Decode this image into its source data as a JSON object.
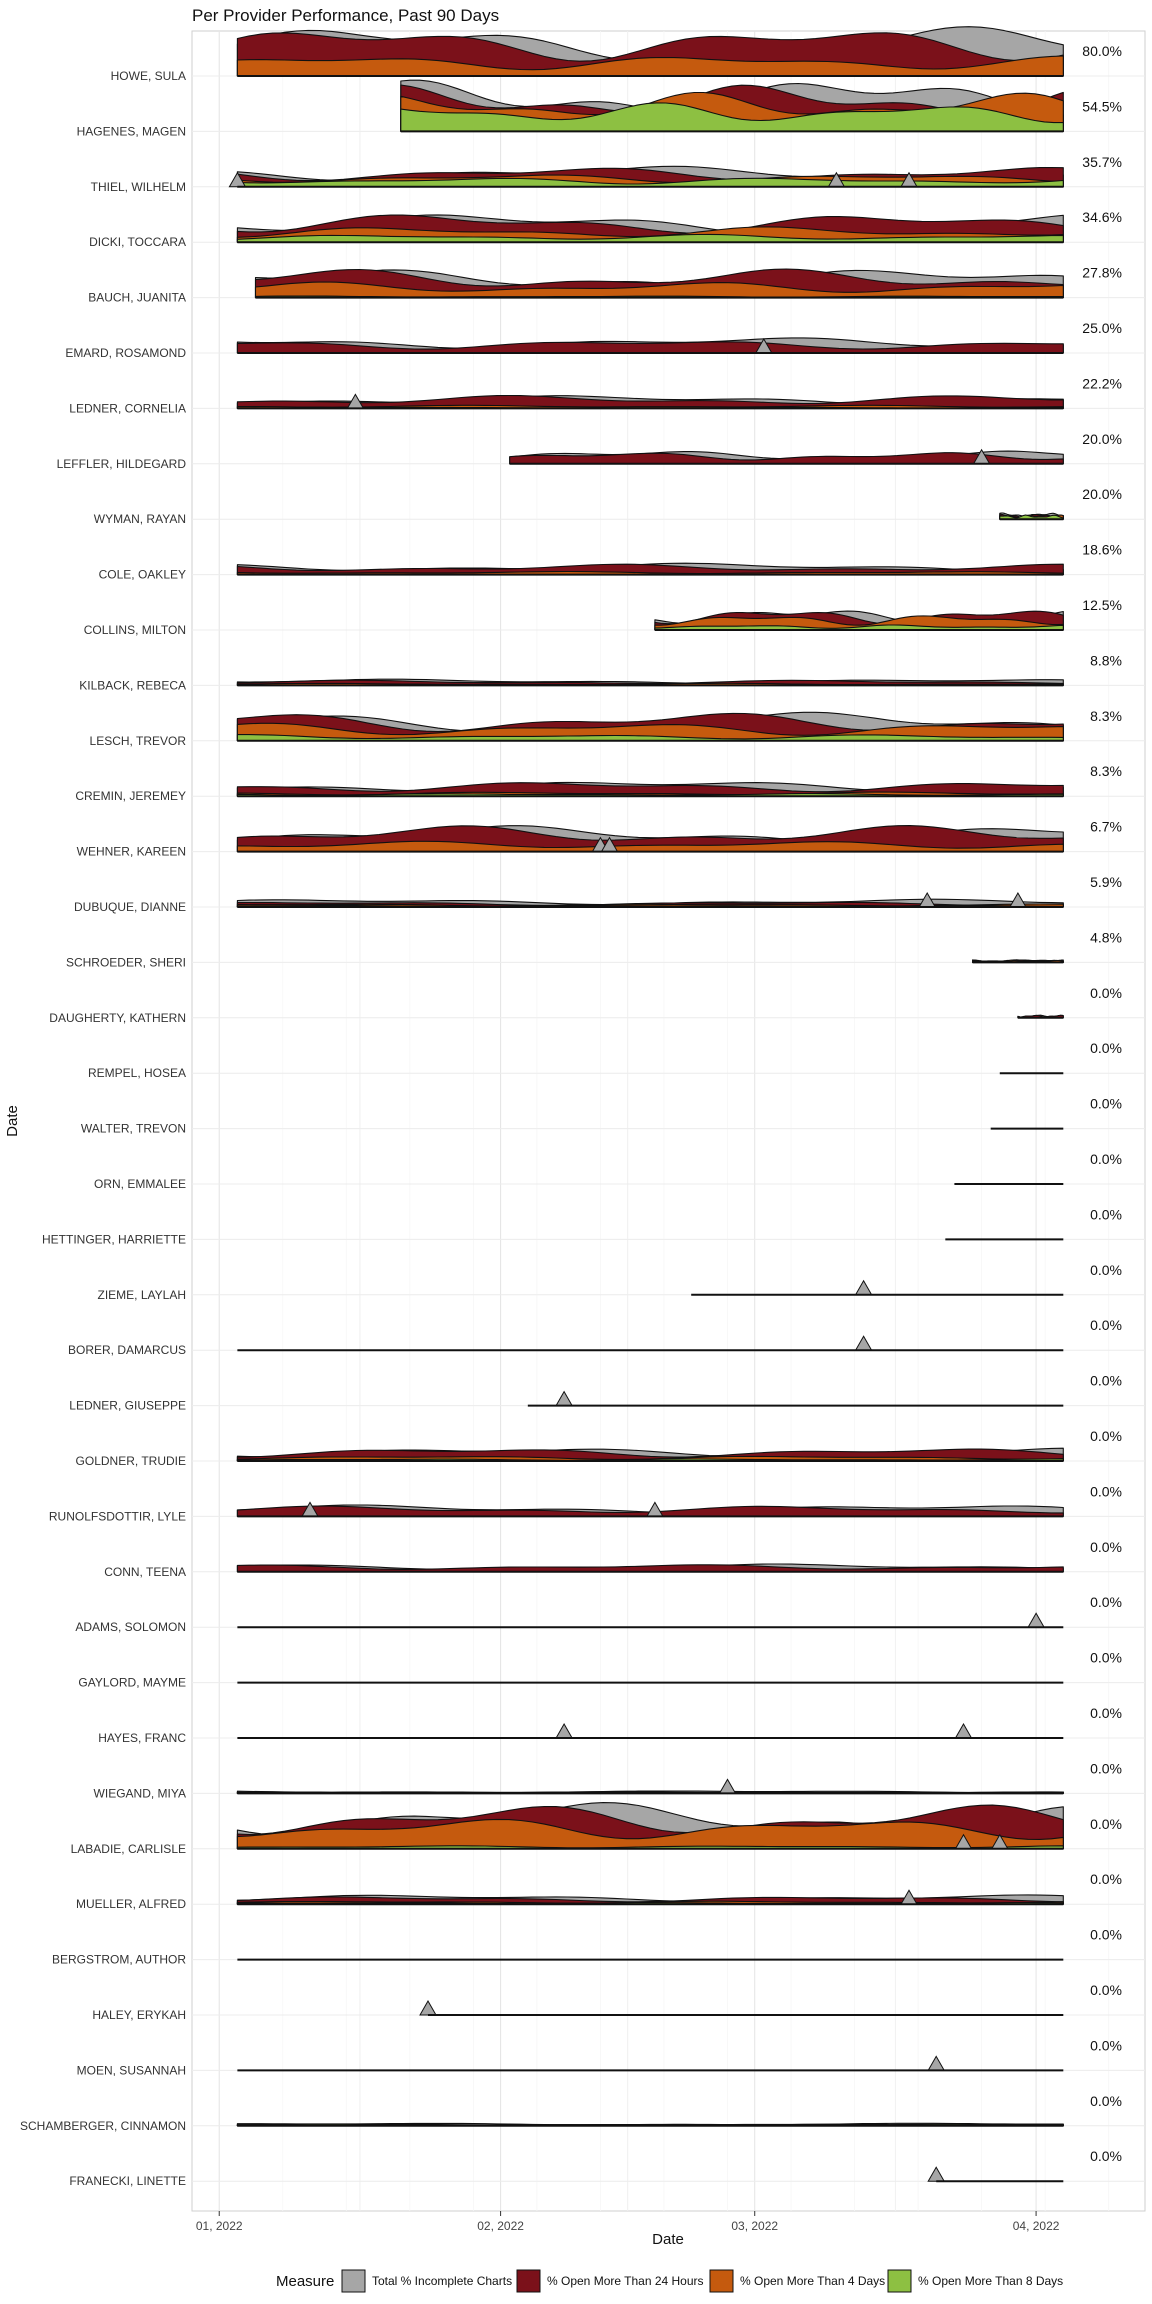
{
  "chart_data": {
    "type": "area",
    "title": "Per Provider Performance, Past 90 Days",
    "xlabel": "Date",
    "ylabel": "Date",
    "x_ticks": [
      {
        "date": "2022-01-01",
        "label": "01, 2022"
      },
      {
        "date": "2022-02-01",
        "label": "02, 2022"
      },
      {
        "date": "2022-03-01",
        "label": "03, 2022"
      },
      {
        "date": "2022-04-01",
        "label": "04, 2022"
      }
    ],
    "xlim": [
      "2021-12-29",
      "2022-04-13"
    ],
    "data_range": [
      "2022-01-03",
      "2022-04-04"
    ],
    "grid": true,
    "legend": {
      "title": "Measure",
      "position": "bottom",
      "entries": [
        {
          "key": "incomplete",
          "label": "Total % Incomplete Charts",
          "color": "#A6A6A6"
        },
        {
          "key": "h24",
          "label": "% Open More Than 24 Hours",
          "color": "#7B111A"
        },
        {
          "key": "d4",
          "label": "% Open More Than 4 Days",
          "color": "#C55A0E"
        },
        {
          "key": "d8",
          "label": "% Open More Than 8 Days",
          "color": "#8DC042"
        }
      ]
    },
    "providers": [
      {
        "name": "HOWE, SULA",
        "pct": "80.0%",
        "start": "2022-01-03",
        "levels": {
          "incomplete": 0.95,
          "h24": 0.95,
          "d4": 0.4,
          "d8": 0.0
        },
        "spikes": []
      },
      {
        "name": "HAGENES, MAGEN",
        "pct": "54.5%",
        "start": "2022-01-21",
        "levels": {
          "incomplete": 1.0,
          "h24": 0.9,
          "d4": 0.75,
          "d8": 0.55
        },
        "spikes": []
      },
      {
        "name": "THIEL, WILHELM",
        "pct": "35.7%",
        "start": "2022-01-03",
        "levels": {
          "incomplete": 0.4,
          "h24": 0.38,
          "d4": 0.25,
          "d8": 0.18
        },
        "spikes": [
          "2022-01-03",
          "2022-03-10",
          "2022-03-18"
        ]
      },
      {
        "name": "DICKI, TOCCARA",
        "pct": "34.6%",
        "start": "2022-01-03",
        "levels": {
          "incomplete": 0.55,
          "h24": 0.55,
          "d4": 0.3,
          "d8": 0.15
        },
        "spikes": []
      },
      {
        "name": "BAUCH, JUANITA",
        "pct": "27.8%",
        "start": "2022-01-05",
        "levels": {
          "incomplete": 0.55,
          "h24": 0.55,
          "d4": 0.3,
          "d8": 0.03
        },
        "spikes": []
      },
      {
        "name": "EMARD, ROSAMOND",
        "pct": "25.0%",
        "start": "2022-01-03",
        "levels": {
          "incomplete": 0.3,
          "h24": 0.25,
          "d4": 0.0,
          "d8": 0.0
        },
        "spikes": [
          "2022-03-02"
        ]
      },
      {
        "name": "LEDNER, CORNELIA",
        "pct": "22.2%",
        "start": "2022-01-03",
        "levels": {
          "incomplete": 0.25,
          "h24": 0.25,
          "d4": 0.06,
          "d8": 0.02
        },
        "spikes": [
          "2022-01-16"
        ]
      },
      {
        "name": "LEFFLER, HILDEGARD",
        "pct": "20.0%",
        "start": "2022-02-02",
        "levels": {
          "incomplete": 0.25,
          "h24": 0.22,
          "d4": 0.0,
          "d8": 0.0
        },
        "spikes": [
          "2022-03-26"
        ]
      },
      {
        "name": "WYMAN, RAYAN",
        "pct": "20.0%",
        "start": "2022-03-28",
        "levels": {
          "incomplete": 0.12,
          "h24": 0.1,
          "d4": 0.08,
          "d8": 0.08
        },
        "spikes": []
      },
      {
        "name": "COLE, OAKLEY",
        "pct": "18.6%",
        "start": "2022-01-03",
        "levels": {
          "incomplete": 0.22,
          "h24": 0.2,
          "d4": 0.06,
          "d8": 0.0
        },
        "spikes": []
      },
      {
        "name": "COLLINS, MILTON",
        "pct": "12.5%",
        "start": "2022-02-18",
        "levels": {
          "incomplete": 0.4,
          "h24": 0.4,
          "d4": 0.3,
          "d8": 0.1
        },
        "spikes": []
      },
      {
        "name": "KILBACK, REBECA",
        "pct": "8.8%",
        "start": "2022-01-03",
        "levels": {
          "incomplete": 0.12,
          "h24": 0.1,
          "d4": 0.04,
          "d8": 0.0
        },
        "spikes": []
      },
      {
        "name": "LESCH, TREVOR",
        "pct": "8.3%",
        "start": "2022-01-03",
        "levels": {
          "incomplete": 0.55,
          "h24": 0.55,
          "d4": 0.35,
          "d8": 0.12
        },
        "spikes": []
      },
      {
        "name": "CREMIN, JEREMEY",
        "pct": "8.3%",
        "start": "2022-01-03",
        "levels": {
          "incomplete": 0.3,
          "h24": 0.28,
          "d4": 0.08,
          "d8": 0.05
        },
        "spikes": []
      },
      {
        "name": "WEHNER, KAREEN",
        "pct": "6.7%",
        "start": "2022-01-03",
        "levels": {
          "incomplete": 0.5,
          "h24": 0.5,
          "d4": 0.2,
          "d8": 0.0
        },
        "spikes": [
          "2022-02-12",
          "2022-02-13"
        ]
      },
      {
        "name": "DUBUQUE, DIANNE",
        "pct": "5.9%",
        "start": "2022-01-03",
        "levels": {
          "incomplete": 0.15,
          "h24": 0.1,
          "d4": 0.06,
          "d8": 0.03
        },
        "spikes": [
          "2022-03-20",
          "2022-03-30"
        ]
      },
      {
        "name": "SCHROEDER, SHERI",
        "pct": "4.8%",
        "start": "2022-03-25",
        "levels": {
          "incomplete": 0.05,
          "h24": 0.05,
          "d4": 0.04,
          "d8": 0.02
        },
        "spikes": []
      },
      {
        "name": "DAUGHERTY, KATHERN",
        "pct": "0.0%",
        "start": "2022-03-30",
        "levels": {
          "incomplete": 0.05,
          "h24": 0.05,
          "d4": 0.0,
          "d8": 0.0
        },
        "spikes": []
      },
      {
        "name": "REMPEL, HOSEA",
        "pct": "0.0%",
        "start": "2022-03-28",
        "levels": {
          "incomplete": 0.0,
          "h24": 0.0,
          "d4": 0.0,
          "d8": 0.0
        },
        "spikes": []
      },
      {
        "name": "WALTER, TREVON",
        "pct": "0.0%",
        "start": "2022-03-27",
        "levels": {
          "incomplete": 0.0,
          "h24": 0.0,
          "d4": 0.0,
          "d8": 0.0
        },
        "spikes": []
      },
      {
        "name": "ORN, EMMALEE",
        "pct": "0.0%",
        "start": "2022-03-23",
        "levels": {
          "incomplete": 0.0,
          "h24": 0.0,
          "d4": 0.0,
          "d8": 0.0
        },
        "spikes": []
      },
      {
        "name": "HETTINGER, HARRIETTE",
        "pct": "0.0%",
        "start": "2022-03-22",
        "levels": {
          "incomplete": 0.0,
          "h24": 0.0,
          "d4": 0.0,
          "d8": 0.0
        },
        "spikes": []
      },
      {
        "name": "ZIEME, LAYLAH",
        "pct": "0.0%",
        "start": "2022-02-22",
        "levels": {
          "incomplete": 0.0,
          "h24": 0.0,
          "d4": 0.0,
          "d8": 0.0
        },
        "spikes": [
          "2022-03-13"
        ]
      },
      {
        "name": "BORER, DAMARCUS",
        "pct": "0.0%",
        "start": "2022-01-03",
        "levels": {
          "incomplete": 0.0,
          "h24": 0.0,
          "d4": 0.0,
          "d8": 0.0
        },
        "spikes": [
          "2022-03-13"
        ]
      },
      {
        "name": "LEDNER, GIUSEPPE",
        "pct": "0.0%",
        "start": "2022-02-04",
        "levels": {
          "incomplete": 0.0,
          "h24": 0.0,
          "d4": 0.0,
          "d8": 0.0
        },
        "spikes": [
          "2022-02-08"
        ]
      },
      {
        "name": "GOLDNER, TRUDIE",
        "pct": "0.0%",
        "start": "2022-01-03",
        "levels": {
          "incomplete": 0.25,
          "h24": 0.25,
          "d4": 0.1,
          "d8": 0.04
        },
        "spikes": []
      },
      {
        "name": "RUNOLFSDOTTIR, LYLE",
        "pct": "0.0%",
        "start": "2022-01-03",
        "levels": {
          "incomplete": 0.22,
          "h24": 0.2,
          "d4": 0.0,
          "d8": 0.0
        },
        "spikes": [
          "2022-01-11",
          "2022-02-18"
        ]
      },
      {
        "name": "CONN, TEENA",
        "pct": "0.0%",
        "start": "2022-01-03",
        "levels": {
          "incomplete": 0.15,
          "h24": 0.14,
          "d4": 0.0,
          "d8": 0.0
        },
        "spikes": []
      },
      {
        "name": "ADAMS, SOLOMON",
        "pct": "0.0%",
        "start": "2022-01-03",
        "levels": {
          "incomplete": 0.0,
          "h24": 0.0,
          "d4": 0.0,
          "d8": 0.0
        },
        "spikes": [
          "2022-04-01"
        ]
      },
      {
        "name": "GAYLORD, MAYME",
        "pct": "0.0%",
        "start": "2022-01-03",
        "levels": {
          "incomplete": 0.0,
          "h24": 0.0,
          "d4": 0.0,
          "d8": 0.0
        },
        "spikes": []
      },
      {
        "name": "HAYES, FRANC",
        "pct": "0.0%",
        "start": "2022-01-03",
        "levels": {
          "incomplete": 0.0,
          "h24": 0.0,
          "d4": 0.0,
          "d8": 0.0
        },
        "spikes": [
          "2022-02-08",
          "2022-03-24"
        ]
      },
      {
        "name": "WIEGAND, MIYA",
        "pct": "0.0%",
        "start": "2022-01-03",
        "levels": {
          "incomplete": 0.05,
          "h24": 0.03,
          "d4": 0.02,
          "d8": 0.02
        },
        "spikes": [
          "2022-02-26"
        ]
      },
      {
        "name": "LABADIE, CARLISLE",
        "pct": "0.0%",
        "start": "2022-01-03",
        "levels": {
          "incomplete": 0.9,
          "h24": 0.85,
          "d4": 0.6,
          "d8": 0.06
        },
        "spikes": [
          "2022-03-24",
          "2022-03-28"
        ]
      },
      {
        "name": "MUELLER, ALFRED",
        "pct": "0.0%",
        "start": "2022-01-03",
        "levels": {
          "incomplete": 0.18,
          "h24": 0.15,
          "d4": 0.06,
          "d8": 0.03
        },
        "spikes": [
          "2022-03-18"
        ]
      },
      {
        "name": "BERGSTROM, AUTHOR",
        "pct": "0.0%",
        "start": "2022-01-03",
        "levels": {
          "incomplete": 0.0,
          "h24": 0.0,
          "d4": 0.0,
          "d8": 0.0
        },
        "spikes": []
      },
      {
        "name": "HALEY, ERYKAH",
        "pct": "0.0%",
        "start": "2022-01-24",
        "levels": {
          "incomplete": 0.0,
          "h24": 0.0,
          "d4": 0.0,
          "d8": 0.0
        },
        "spikes": [
          "2022-01-24"
        ]
      },
      {
        "name": "MOEN, SUSANNAH",
        "pct": "0.0%",
        "start": "2022-01-03",
        "levels": {
          "incomplete": 0.0,
          "h24": 0.0,
          "d4": 0.0,
          "d8": 0.0
        },
        "spikes": [
          "2022-03-21"
        ]
      },
      {
        "name": "SCHAMBERGER, CINNAMON",
        "pct": "0.0%",
        "start": "2022-01-03",
        "levels": {
          "incomplete": 0.05,
          "h24": 0.03,
          "d4": 0.03,
          "d8": 0.03
        },
        "spikes": []
      },
      {
        "name": "FRANECKI, LINETTE",
        "pct": "0.0%",
        "start": "2022-03-21",
        "levels": {
          "incomplete": 0.0,
          "h24": 0.0,
          "d4": 0.0,
          "d8": 0.0
        },
        "spikes": [
          "2022-03-21"
        ]
      }
    ]
  }
}
